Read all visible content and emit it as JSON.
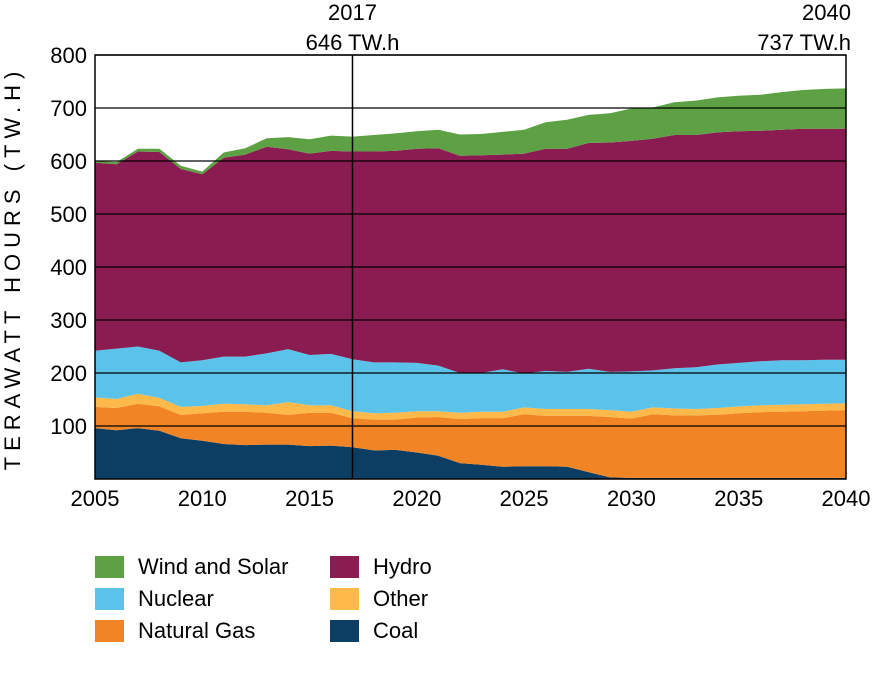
{
  "chart_data": {
    "type": "area",
    "stacked": true,
    "xlabel": "",
    "ylabel": "TERAWATT HOURS (TW.H)",
    "xlim": [
      2005,
      2040
    ],
    "ylim": [
      0,
      800
    ],
    "xticks": [
      "2005",
      "2010",
      "2015",
      "2020",
      "2025",
      "2030",
      "2035",
      "2040"
    ],
    "yticks": [
      "100",
      "200",
      "300",
      "400",
      "500",
      "600",
      "700",
      "800"
    ],
    "x": [
      2005,
      2006,
      2007,
      2008,
      2009,
      2010,
      2011,
      2012,
      2013,
      2014,
      2015,
      2016,
      2017,
      2018,
      2019,
      2020,
      2021,
      2022,
      2023,
      2024,
      2025,
      2026,
      2027,
      2028,
      2029,
      2030,
      2031,
      2032,
      2033,
      2034,
      2035,
      2036,
      2037,
      2038,
      2039,
      2040
    ],
    "series": [
      {
        "name": "Coal",
        "color": "#0b3e62",
        "values": [
          96,
          92,
          96,
          91,
          77,
          72,
          66,
          64,
          65,
          65,
          62,
          63,
          60,
          54,
          55,
          50,
          44,
          30,
          27,
          23,
          24,
          24,
          23,
          13,
          3,
          2,
          2,
          2,
          2,
          2,
          2,
          2,
          2,
          2,
          2,
          2
        ]
      },
      {
        "name": "Natural Gas",
        "color": "#f18425",
        "values": [
          40,
          42,
          46,
          46,
          44,
          52,
          61,
          63,
          60,
          56,
          63,
          62,
          55,
          58,
          57,
          66,
          73,
          83,
          88,
          92,
          98,
          95,
          96,
          106,
          114,
          112,
          120,
          118,
          118,
          119,
          122,
          124,
          125,
          126,
          127,
          128
        ]
      },
      {
        "name": "Other",
        "color": "#fdb94a",
        "values": [
          18,
          17,
          19,
          16,
          15,
          14,
          15,
          14,
          14,
          24,
          14,
          14,
          13,
          12,
          13,
          12,
          11,
          12,
          12,
          12,
          13,
          13,
          13,
          13,
          13,
          13,
          13,
          13,
          12,
          13,
          13,
          13,
          13,
          13,
          13,
          13
        ]
      },
      {
        "name": "Nuclear",
        "color": "#5bc3ea",
        "values": [
          88,
          95,
          89,
          89,
          84,
          86,
          89,
          90,
          98,
          100,
          95,
          97,
          98,
          96,
          95,
          91,
          86,
          75,
          73,
          80,
          64,
          72,
          70,
          76,
          72,
          76,
          70,
          76,
          79,
          82,
          82,
          83,
          84,
          83,
          83,
          82
        ]
      },
      {
        "name": "Hydro",
        "color": "#8b1c52",
        "values": [
          355,
          348,
          368,
          375,
          365,
          351,
          375,
          381,
          390,
          377,
          380,
          383,
          392,
          398,
          399,
          404,
          410,
          410,
          411,
          405,
          415,
          419,
          421,
          426,
          433,
          435,
          437,
          440,
          438,
          438,
          437,
          435,
          435,
          437,
          436,
          436
        ]
      },
      {
        "name": "Wind and Solar",
        "color": "#5ea044",
        "values": [
          3,
          4,
          5,
          6,
          6,
          5,
          10,
          12,
          16,
          23,
          27,
          29,
          28,
          31,
          33,
          33,
          35,
          40,
          40,
          43,
          45,
          50,
          55,
          53,
          55,
          61,
          59,
          62,
          65,
          66,
          67,
          68,
          71,
          73,
          75,
          76
        ]
      }
    ],
    "annotations": [
      {
        "x": 2017,
        "line1": "2017",
        "line2": "646 TW.h"
      },
      {
        "x": 2040,
        "line1": "2040",
        "line2": "737 TW.h"
      }
    ],
    "legend": [
      {
        "label": "Wind and Solar",
        "color": "#5ea044"
      },
      {
        "label": "Hydro",
        "color": "#8b1c52"
      },
      {
        "label": "Nuclear",
        "color": "#5bc3ea"
      },
      {
        "label": "Other",
        "color": "#fdb94a"
      },
      {
        "label": "Natural Gas",
        "color": "#f18425"
      },
      {
        "label": "Coal",
        "color": "#0b3e62"
      }
    ]
  }
}
